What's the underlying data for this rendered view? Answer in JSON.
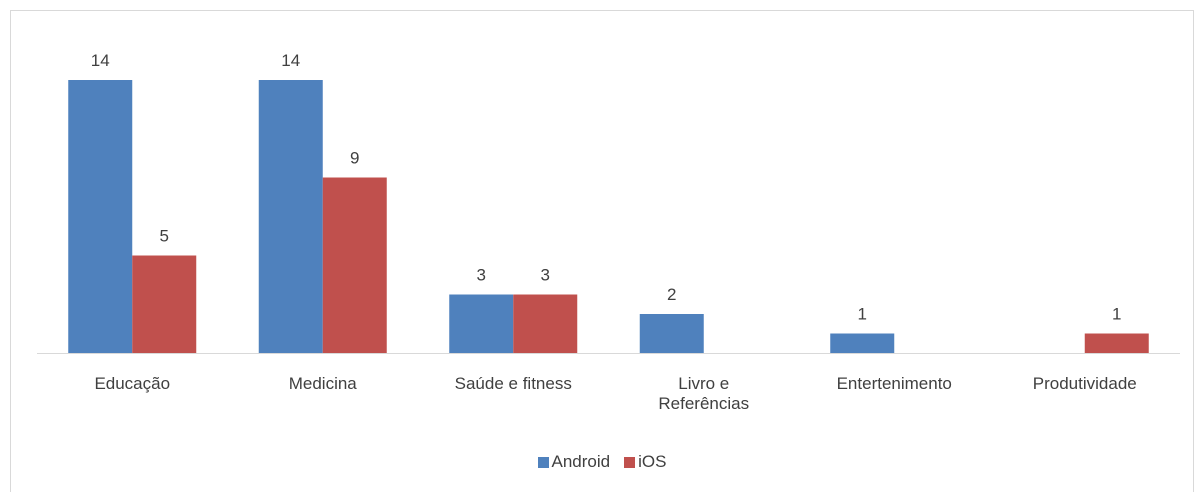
{
  "chart_data": {
    "type": "bar",
    "categories": [
      "Educação",
      "Medicina",
      "Saúde e fitness",
      "Livro e Referências",
      "Entertenimento",
      "Produtividade"
    ],
    "series": [
      {
        "name": "Android",
        "color": "#4f81bd",
        "values": [
          14,
          14,
          3,
          2,
          1,
          null
        ]
      },
      {
        "name": "iOS",
        "color": "#c0504d",
        "values": [
          5,
          9,
          3,
          null,
          null,
          1
        ]
      }
    ],
    "ylim": [
      0,
      14
    ],
    "legend": "bottom"
  }
}
